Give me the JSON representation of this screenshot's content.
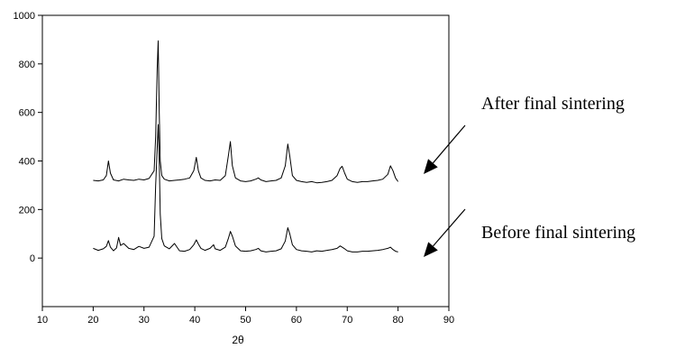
{
  "chart_data": {
    "type": "line",
    "title": "",
    "xlabel": "2θ",
    "ylabel": "",
    "xlim": [
      10,
      90
    ],
    "ylim": [
      -200,
      1000
    ],
    "xticks": [
      10,
      20,
      30,
      40,
      50,
      60,
      70,
      80,
      90
    ],
    "yticks": [
      0,
      200,
      400,
      600,
      800,
      1000
    ],
    "grid": false,
    "legend": "none",
    "series": [
      {
        "name": "After final sintering",
        "color": "#000000",
        "x": [
          20,
          21,
          22,
          22.6,
          23,
          23.4,
          24,
          25,
          26,
          27,
          28,
          29,
          30,
          31,
          32,
          32.3,
          32.6,
          32.8,
          33.0,
          33.2,
          33.5,
          34,
          35,
          36,
          37,
          38,
          39,
          39.8,
          40.3,
          40.7,
          41.2,
          42,
          43,
          44,
          45,
          46,
          46.6,
          47.0,
          47.4,
          48,
          49,
          50,
          51,
          52,
          52.5,
          53,
          54,
          55,
          56,
          57,
          57.8,
          58.3,
          58.7,
          59.2,
          60,
          61,
          62,
          63,
          64,
          65,
          66,
          67,
          68,
          68.6,
          69,
          69.5,
          70,
          71,
          72,
          73,
          74,
          75,
          76,
          77,
          78,
          78.5,
          79,
          79.5,
          80
        ],
        "y": [
          320,
          318,
          322,
          340,
          400,
          350,
          322,
          318,
          325,
          322,
          320,
          325,
          322,
          328,
          360,
          500,
          780,
          895,
          600,
          400,
          340,
          325,
          318,
          320,
          322,
          325,
          330,
          360,
          415,
          360,
          330,
          320,
          318,
          322,
          320,
          340,
          420,
          480,
          380,
          330,
          318,
          315,
          318,
          325,
          330,
          322,
          315,
          318,
          320,
          330,
          380,
          470,
          420,
          340,
          320,
          315,
          312,
          315,
          310,
          312,
          315,
          320,
          340,
          370,
          378,
          350,
          325,
          315,
          312,
          315,
          315,
          318,
          320,
          325,
          345,
          380,
          360,
          330,
          315
        ]
      },
      {
        "name": "Before final sintering",
        "color": "#000000",
        "x": [
          20,
          21,
          22,
          22.6,
          23,
          23.4,
          24,
          24.6,
          25,
          25.4,
          26,
          27,
          28,
          29,
          30,
          31,
          32,
          32.3,
          32.6,
          32.8,
          33.0,
          33.2,
          33.5,
          34,
          35,
          36,
          36.5,
          37,
          38,
          39,
          39.8,
          40.3,
          40.7,
          41.2,
          42,
          43,
          43.7,
          44,
          45,
          46,
          46.6,
          47.0,
          47.4,
          48,
          49,
          50,
          51,
          52,
          52.5,
          53,
          54,
          55,
          56,
          57,
          57.8,
          58.3,
          58.7,
          59.2,
          60,
          61,
          62,
          63,
          64,
          65,
          66,
          67,
          68,
          68.6,
          69,
          69.5,
          70,
          71,
          72,
          73,
          74,
          75,
          76,
          77,
          78,
          78.5,
          79,
          79.5,
          80
        ],
        "y": [
          40,
          32,
          38,
          48,
          72,
          45,
          30,
          42,
          85,
          52,
          60,
          40,
          35,
          48,
          40,
          45,
          90,
          300,
          450,
          550,
          400,
          180,
          80,
          50,
          38,
          60,
          45,
          30,
          28,
          35,
          55,
          75,
          58,
          40,
          32,
          40,
          55,
          38,
          32,
          45,
          80,
          110,
          90,
          50,
          30,
          28,
          30,
          35,
          40,
          30,
          25,
          28,
          30,
          38,
          70,
          125,
          100,
          55,
          35,
          30,
          28,
          25,
          30,
          28,
          32,
          35,
          40,
          50,
          45,
          38,
          30,
          25,
          25,
          28,
          28,
          30,
          32,
          35,
          40,
          45,
          35,
          28,
          25
        ]
      }
    ],
    "annotations": [
      {
        "text": "After final sintering",
        "points_to": "After final sintering"
      },
      {
        "text": "Before final sintering",
        "points_to": "Before final sintering"
      }
    ]
  }
}
